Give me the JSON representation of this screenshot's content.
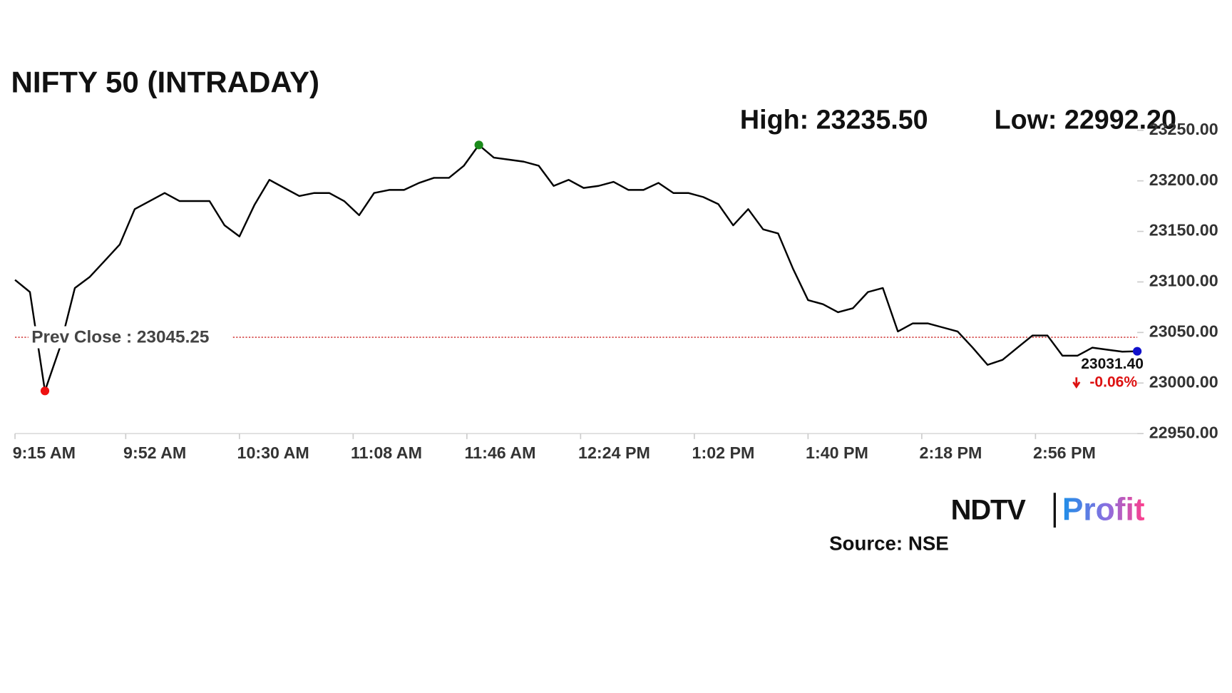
{
  "chart_data": {
    "type": "line",
    "title": "NIFTY 50 (INTRADAY)",
    "x": [
      "09:15",
      "09:20",
      "09:25",
      "09:30",
      "09:35",
      "09:40",
      "09:45",
      "09:50",
      "09:55",
      "10:00",
      "10:05",
      "10:10",
      "10:15",
      "10:20",
      "10:25",
      "10:30",
      "10:35",
      "10:40",
      "10:45",
      "10:50",
      "10:55",
      "11:00",
      "11:05",
      "11:10",
      "11:15",
      "11:20",
      "11:25",
      "11:30",
      "11:35",
      "11:40",
      "11:45",
      "11:50",
      "11:55",
      "12:00",
      "12:05",
      "12:10",
      "12:15",
      "12:20",
      "12:25",
      "12:30",
      "12:35",
      "12:40",
      "12:45",
      "12:50",
      "12:55",
      "13:00",
      "13:05",
      "13:10",
      "13:15",
      "13:20",
      "13:25",
      "13:30",
      "13:35",
      "13:40",
      "13:45",
      "13:50",
      "13:55",
      "14:00",
      "14:05",
      "14:10",
      "14:15",
      "14:20",
      "14:25",
      "14:30",
      "14:35",
      "14:40",
      "14:45",
      "14:50",
      "14:55",
      "15:00",
      "15:05",
      "15:10",
      "15:15",
      "15:20",
      "15:25",
      "15:30"
    ],
    "series": [
      {
        "name": "NIFTY 50",
        "color": "#000000",
        "values": [
          23102,
          23090,
          22992.2,
          23035,
          23094,
          23105,
          23121,
          23137,
          23172,
          23180,
          23188,
          23180,
          23180,
          23180,
          23156,
          23145,
          23176,
          23201,
          23193,
          23185,
          23188,
          23188,
          23180,
          23166,
          23188,
          23191,
          23191,
          23198,
          23203,
          23203,
          23215,
          23235.5,
          23223,
          23221,
          23219,
          23215,
          23195,
          23201,
          23193,
          23195,
          23199,
          23191,
          23191,
          23198,
          23188,
          23188,
          23184,
          23177,
          23156,
          23172,
          23152,
          23148,
          23113,
          23082,
          23078,
          23070,
          23074,
          23090,
          23094,
          23051,
          23059,
          23059,
          23055,
          23051,
          23035,
          23018,
          23023,
          23035,
          23047,
          23047,
          23027,
          23027,
          23035,
          23033,
          23031,
          23031.4
        ]
      }
    ],
    "xlim": [
      "09:15",
      "15:30"
    ],
    "xticks": [
      {
        "value": "09:15",
        "label": "9:15 AM"
      },
      {
        "value": "09:52",
        "label": "9:52 AM"
      },
      {
        "value": "10:30",
        "label": "10:30 AM"
      },
      {
        "value": "11:08",
        "label": "11:08 AM"
      },
      {
        "value": "11:46",
        "label": "11:46 AM"
      },
      {
        "value": "12:24",
        "label": "12:24 PM"
      },
      {
        "value": "13:02",
        "label": "1:02 PM"
      },
      {
        "value": "13:40",
        "label": "1:40 PM"
      },
      {
        "value": "14:18",
        "label": "2:18 PM"
      },
      {
        "value": "14:56",
        "label": "2:56 PM"
      }
    ],
    "ylim": [
      22950,
      23250
    ],
    "yticks": [
      {
        "value": 22950,
        "label": "22950.00"
      },
      {
        "value": 23000,
        "label": "23000.00"
      },
      {
        "value": 23050,
        "label": "23050.00"
      },
      {
        "value": 23100,
        "label": "23100.00"
      },
      {
        "value": 23150,
        "label": "23150.00"
      },
      {
        "value": 23200,
        "label": "23200.00"
      },
      {
        "value": 23250,
        "label": "23250.00"
      }
    ],
    "high": {
      "label": "High: 23235.50",
      "value": 23235.5,
      "x": "11:50",
      "color": "#1a8a1a"
    },
    "low": {
      "label": "Low: 22992.20",
      "value": 22992.2,
      "x": "09:25",
      "color": "#ee1111"
    },
    "prev_close": {
      "label": "Prev Close : 23045.25",
      "value": 23045.25,
      "color": "#cc2222"
    },
    "last": {
      "label": "23031.40",
      "value": 23031.4,
      "x": "15:30",
      "color": "#1111cc"
    },
    "change": {
      "label": "-0.06%",
      "value": -0.06,
      "color": "#dd1111"
    },
    "logo": [
      "NDTV",
      "Profit"
    ],
    "source": "Source: NSE"
  }
}
